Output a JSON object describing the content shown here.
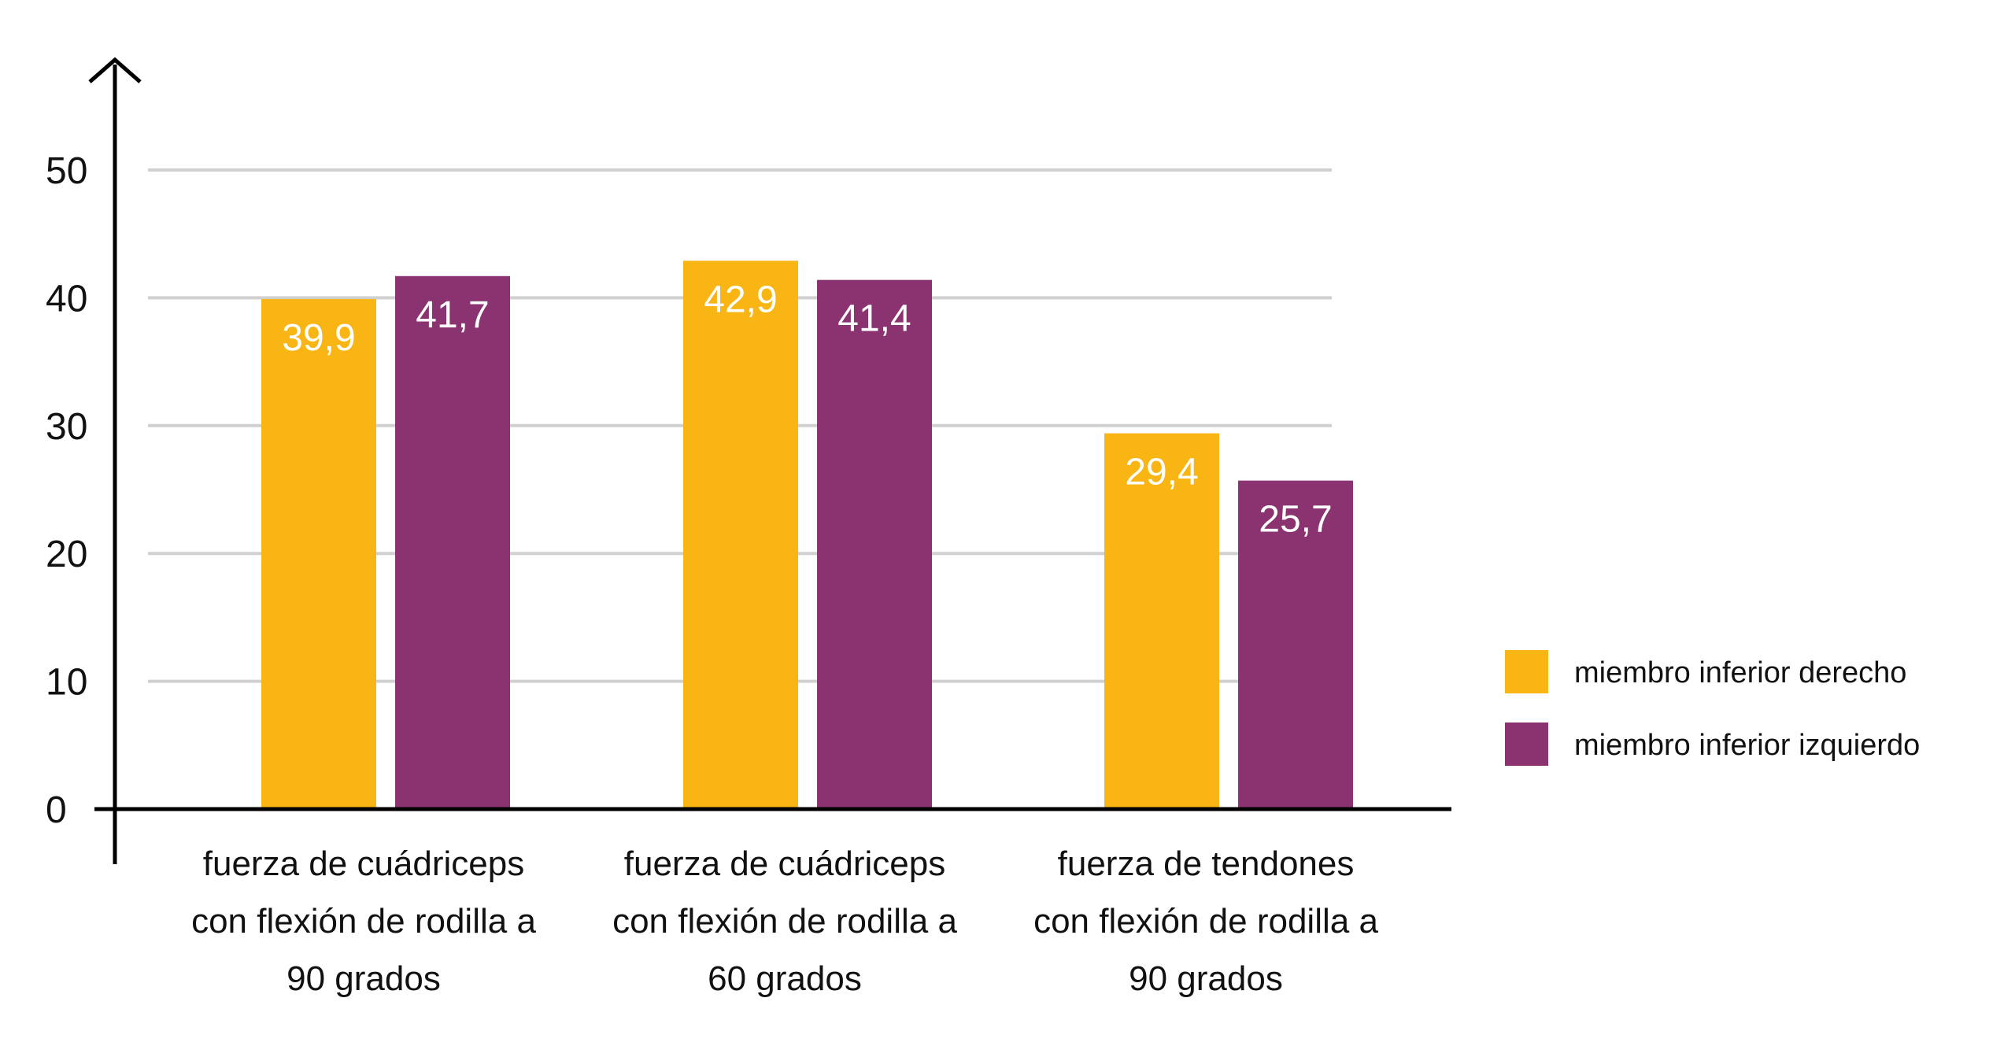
{
  "chart_data": {
    "type": "bar",
    "categories": [
      [
        "fuerza de cuádriceps",
        "con flexión de rodilla a",
        "90 grados"
      ],
      [
        "fuerza de cuádriceps",
        "con flexión de rodilla a",
        "60 grados"
      ],
      [
        "fuerza de tendones",
        "con flexión de rodilla a",
        "90 grados"
      ]
    ],
    "series": [
      {
        "name": "miembro inferior derecho",
        "values": [
          39.9,
          42.9,
          29.4
        ],
        "labels": [
          "39,9",
          "42,9",
          "29,4"
        ],
        "color": "#F9B514"
      },
      {
        "name": "miembro inferior izquierdo",
        "values": [
          41.7,
          41.4,
          25.7
        ],
        "labels": [
          "41,7",
          "41,4",
          "25,7"
        ],
        "color": "#8A3370"
      }
    ],
    "yticks": [
      0,
      10,
      20,
      30,
      40,
      50
    ],
    "ylim": [
      0,
      50
    ],
    "grid": true,
    "gridColor": "#D0D0D0",
    "axisColor": "#000000",
    "legend_position": "right"
  }
}
